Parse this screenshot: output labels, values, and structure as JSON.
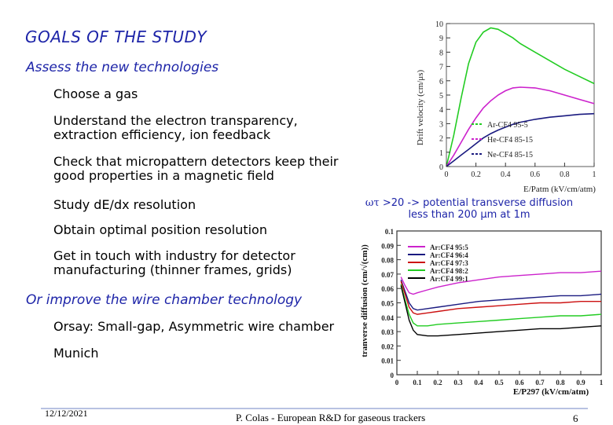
{
  "slide": {
    "title": "GOALS OF THE STUDY",
    "section1": "Assess the new technologies",
    "bullets1": [
      "Choose a gas",
      "Understand the electron transparency, extraction efficiency, ion feedback",
      "Check that micropattern detectors keep their good properties in a magnetic field",
      "Study dE/dx resolution",
      "Obtain optimal position resolution",
      "Get in touch with industry for detector manufacturing (thinner frames, grids)"
    ],
    "section2": "Or improve the wire chamber technology",
    "bullets2": [
      "Orsay: Small-gap, Asymmetric wire chamber",
      "Munich"
    ],
    "caption": {
      "symbol": "ωτ",
      "line1": " >20 -> potential transverse diffusion",
      "line2": "less than 200 μm at 1m"
    },
    "footer": {
      "date": "12/12/2021",
      "center": "P. Colas  - European R&D for gaseous trackers",
      "page": "6"
    }
  },
  "colors": {
    "title": "#1d24a8",
    "green": "#22cc22",
    "magenta": "#cc22cc",
    "navy": "#1a1a80",
    "red": "#cc1111",
    "black": "#000000"
  },
  "chart_data": [
    {
      "type": "line",
      "title": "",
      "xlabel": "E/Patm (kV/cm/atm)",
      "ylabel": "Drift velocity (cm/μs)",
      "xlim": [
        0,
        1
      ],
      "ylim": [
        0,
        10
      ],
      "xticks": [
        "0",
        "0.2",
        "0.4",
        "0.6",
        "0.8",
        "1"
      ],
      "yticks": [
        "0",
        "1",
        "2",
        "3",
        "4",
        "5",
        "6",
        "7",
        "8",
        "9",
        "10"
      ],
      "legend_position": "center-right",
      "x": [
        0,
        0.05,
        0.1,
        0.15,
        0.2,
        0.25,
        0.3,
        0.35,
        0.4,
        0.45,
        0.5,
        0.6,
        0.7,
        0.8,
        0.9,
        1.0
      ],
      "series": [
        {
          "name": "Ar-CF4 95-5",
          "color": "#22cc22",
          "values": [
            0,
            2.2,
            4.8,
            7.2,
            8.7,
            9.4,
            9.7,
            9.6,
            9.3,
            9.0,
            8.6,
            8.0,
            7.4,
            6.8,
            6.3,
            5.8
          ]
        },
        {
          "name": "He-CF4 85-15",
          "color": "#cc22cc",
          "values": [
            0,
            0.8,
            1.7,
            2.6,
            3.4,
            4.1,
            4.6,
            5.0,
            5.3,
            5.5,
            5.55,
            5.5,
            5.3,
            5.0,
            4.7,
            4.4
          ]
        },
        {
          "name": "Ne-CF4 85-15",
          "color": "#1a1a80",
          "values": [
            0,
            0.4,
            0.8,
            1.2,
            1.6,
            2.0,
            2.3,
            2.55,
            2.75,
            2.95,
            3.1,
            3.3,
            3.45,
            3.55,
            3.65,
            3.7
          ]
        }
      ]
    },
    {
      "type": "line",
      "title": "",
      "xlabel": "E/P297 (kV/cm/atm)",
      "ylabel": "tranverse diffusion (cm/√(cm))",
      "xlim": [
        0,
        1
      ],
      "ylim": [
        0,
        0.1
      ],
      "xticks": [
        "0",
        "0.1",
        "0.2",
        "0.3",
        "0.4",
        "0.5",
        "0.6",
        "0.7",
        "0.8",
        "0.9",
        "1"
      ],
      "yticks": [
        "0",
        "0.01",
        "0.02",
        "0.03",
        "0.04",
        "0.05",
        "0.06",
        "0.07",
        "0.08",
        "0.09",
        "0.1"
      ],
      "legend_position": "top-left",
      "x": [
        0.02,
        0.04,
        0.06,
        0.08,
        0.1,
        0.15,
        0.2,
        0.3,
        0.4,
        0.5,
        0.6,
        0.7,
        0.8,
        0.9,
        1.0
      ],
      "series": [
        {
          "name": "Ar:CF4 95:5",
          "color": "#cc22cc",
          "values": [
            0.068,
            0.062,
            0.057,
            0.056,
            0.057,
            0.059,
            0.061,
            0.064,
            0.066,
            0.068,
            0.069,
            0.07,
            0.071,
            0.071,
            0.072
          ]
        },
        {
          "name": "Ar:CF4 96:4",
          "color": "#1a1a80",
          "values": [
            0.066,
            0.058,
            0.05,
            0.046,
            0.045,
            0.046,
            0.047,
            0.049,
            0.051,
            0.052,
            0.053,
            0.054,
            0.055,
            0.055,
            0.056
          ]
        },
        {
          "name": "Ar:CF4 97:3",
          "color": "#cc1111",
          "values": [
            0.065,
            0.056,
            0.047,
            0.043,
            0.042,
            0.043,
            0.044,
            0.046,
            0.047,
            0.048,
            0.049,
            0.05,
            0.05,
            0.051,
            0.051
          ]
        },
        {
          "name": "Ar:CF4 98:2",
          "color": "#22cc22",
          "values": [
            0.063,
            0.052,
            0.042,
            0.036,
            0.034,
            0.034,
            0.035,
            0.036,
            0.037,
            0.038,
            0.039,
            0.04,
            0.041,
            0.041,
            0.042
          ]
        },
        {
          "name": "Ar:CF4 99:1",
          "color": "#000000",
          "values": [
            0.062,
            0.05,
            0.038,
            0.031,
            0.028,
            0.027,
            0.027,
            0.028,
            0.029,
            0.03,
            0.031,
            0.032,
            0.032,
            0.033,
            0.034
          ]
        }
      ]
    }
  ]
}
